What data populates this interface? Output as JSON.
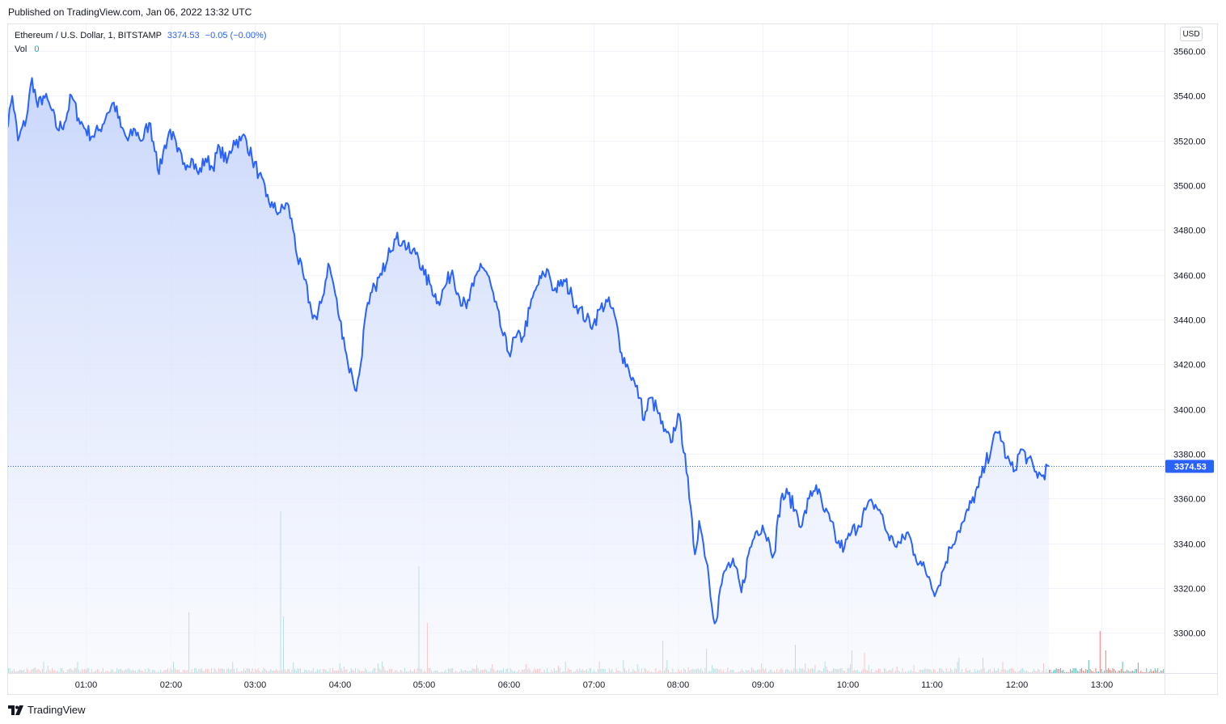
{
  "header": {
    "published": "Published on TradingView.com, Jan 06, 2022 13:32 UTC"
  },
  "legend": {
    "symbol": "Ethereum / U.S. Dollar, 1, BITSTAMP",
    "price": "3374.53",
    "change": "−0.05 (−0.00%)",
    "volume_label": "Vol",
    "volume_value": "0"
  },
  "currency_button": "USD",
  "footer": {
    "brand": "TradingView",
    "logo_icon": "tradingview-logo-icon"
  },
  "colors": {
    "line": "#2962ff",
    "area_top": "#c7d5fb",
    "area_bottom": "#f5f7fe",
    "volume_up": "#26a69a",
    "volume_down": "#ef5350",
    "last_price_tag": "#2962ff",
    "grid": "#f0f3fa"
  },
  "chart_data": {
    "type": "area",
    "title": "Ethereum / U.S. Dollar, 1, BITSTAMP",
    "xlabel": "",
    "ylabel": "",
    "grid": true,
    "x_ticks": [
      "01:00",
      "02:00",
      "03:00",
      "04:00",
      "05:00",
      "06:00",
      "07:00",
      "08:00",
      "09:00",
      "10:00",
      "11:00",
      "12:00",
      "13:00"
    ],
    "y_ticks": [
      3300,
      3320,
      3340,
      3360,
      3380,
      3400,
      3420,
      3440,
      3460,
      3480,
      3500,
      3520,
      3540,
      3560
    ],
    "ylim": [
      3282,
      3572
    ],
    "xlim": [
      "00:05",
      "13:45"
    ],
    "last_price": 3374.53,
    "series": [
      {
        "points": [
          [
            "00:00",
            3535
          ],
          [
            "00:04",
            3525
          ],
          [
            "00:08",
            3540
          ],
          [
            "00:12",
            3520
          ],
          [
            "00:18",
            3530
          ],
          [
            "00:22",
            3548
          ],
          [
            "00:26",
            3535
          ],
          [
            "00:30",
            3540
          ],
          [
            "00:35",
            3535
          ],
          [
            "00:40",
            3525
          ],
          [
            "00:45",
            3528
          ],
          [
            "00:50",
            3540
          ],
          [
            "00:55",
            3530
          ],
          [
            "01:00",
            3525
          ],
          [
            "01:05",
            3522
          ],
          [
            "01:10",
            3525
          ],
          [
            "01:15",
            3532
          ],
          [
            "01:20",
            3537
          ],
          [
            "01:25",
            3526
          ],
          [
            "01:30",
            3520
          ],
          [
            "01:35",
            3525
          ],
          [
            "01:40",
            3520
          ],
          [
            "01:45",
            3528
          ],
          [
            "01:50",
            3515
          ],
          [
            "01:52",
            3505
          ],
          [
            "01:55",
            3515
          ],
          [
            "02:00",
            3525
          ],
          [
            "02:05",
            3515
          ],
          [
            "02:10",
            3510
          ],
          [
            "02:15",
            3512
          ],
          [
            "02:20",
            3505
          ],
          [
            "02:25",
            3512
          ],
          [
            "02:30",
            3508
          ],
          [
            "02:35",
            3517
          ],
          [
            "02:40",
            3510
          ],
          [
            "02:45",
            3520
          ],
          [
            "02:50",
            3520
          ],
          [
            "02:53",
            3522
          ],
          [
            "02:58",
            3512
          ],
          [
            "03:03",
            3505
          ],
          [
            "03:08",
            3495
          ],
          [
            "03:13",
            3490
          ],
          [
            "03:18",
            3488
          ],
          [
            "03:23",
            3492
          ],
          [
            "03:28",
            3478
          ],
          [
            "03:30",
            3468
          ],
          [
            "03:35",
            3458
          ],
          [
            "03:40",
            3444
          ],
          [
            "03:44",
            3440
          ],
          [
            "03:48",
            3450
          ],
          [
            "03:52",
            3465
          ],
          [
            "03:56",
            3455
          ],
          [
            "04:00",
            3440
          ],
          [
            "04:03",
            3432
          ],
          [
            "04:06",
            3420
          ],
          [
            "04:09",
            3415
          ],
          [
            "04:12",
            3408
          ],
          [
            "04:15",
            3420
          ],
          [
            "04:18",
            3440
          ],
          [
            "04:21",
            3447
          ],
          [
            "04:25",
            3455
          ],
          [
            "04:30",
            3460
          ],
          [
            "04:35",
            3472
          ],
          [
            "04:40",
            3476
          ],
          [
            "04:45",
            3475
          ],
          [
            "04:50",
            3470
          ],
          [
            "04:55",
            3470
          ],
          [
            "05:00",
            3460
          ],
          [
            "05:05",
            3455
          ],
          [
            "05:10",
            3448
          ],
          [
            "05:15",
            3455
          ],
          [
            "05:20",
            3462
          ],
          [
            "05:25",
            3450
          ],
          [
            "05:30",
            3445
          ],
          [
            "05:35",
            3455
          ],
          [
            "05:40",
            3465
          ],
          [
            "05:45",
            3460
          ],
          [
            "05:50",
            3448
          ],
          [
            "05:55",
            3435
          ],
          [
            "06:00",
            3425
          ],
          [
            "06:05",
            3432
          ],
          [
            "06:10",
            3432
          ],
          [
            "06:15",
            3445
          ],
          [
            "06:20",
            3455
          ],
          [
            "06:25",
            3460
          ],
          [
            "06:28",
            3462
          ],
          [
            "06:32",
            3453
          ],
          [
            "06:36",
            3455
          ],
          [
            "06:40",
            3457
          ],
          [
            "06:45",
            3450
          ],
          [
            "06:50",
            3445
          ],
          [
            "06:55",
            3440
          ],
          [
            "07:00",
            3438
          ],
          [
            "07:05",
            3445
          ],
          [
            "07:10",
            3448
          ],
          [
            "07:15",
            3442
          ],
          [
            "07:20",
            3425
          ],
          [
            "07:25",
            3418
          ],
          [
            "07:30",
            3410
          ],
          [
            "07:33",
            3405
          ],
          [
            "07:36",
            3395
          ],
          [
            "07:40",
            3405
          ],
          [
            "07:45",
            3400
          ],
          [
            "07:50",
            3390
          ],
          [
            "07:55",
            3385
          ],
          [
            "08:00",
            3398
          ],
          [
            "08:05",
            3380
          ],
          [
            "08:08",
            3360
          ],
          [
            "08:12",
            3335
          ],
          [
            "08:15",
            3350
          ],
          [
            "08:18",
            3340
          ],
          [
            "08:21",
            3330
          ],
          [
            "08:24",
            3312
          ],
          [
            "08:27",
            3305
          ],
          [
            "08:30",
            3320
          ],
          [
            "08:35",
            3330
          ],
          [
            "08:40",
            3330
          ],
          [
            "08:45",
            3318
          ],
          [
            "08:50",
            3335
          ],
          [
            "08:55",
            3345
          ],
          [
            "09:00",
            3348
          ],
          [
            "09:05",
            3340
          ],
          [
            "09:08",
            3335
          ],
          [
            "09:13",
            3360
          ],
          [
            "09:18",
            3362
          ],
          [
            "09:23",
            3355
          ],
          [
            "09:28",
            3348
          ],
          [
            "09:33",
            3360
          ],
          [
            "09:38",
            3366
          ],
          [
            "09:43",
            3355
          ],
          [
            "09:48",
            3350
          ],
          [
            "09:53",
            3340
          ],
          [
            "09:58",
            3338
          ],
          [
            "10:03",
            3345
          ],
          [
            "10:08",
            3348
          ],
          [
            "10:13",
            3355
          ],
          [
            "10:18",
            3358
          ],
          [
            "10:23",
            3355
          ],
          [
            "10:28",
            3345
          ],
          [
            "10:33",
            3340
          ],
          [
            "10:38",
            3340
          ],
          [
            "10:43",
            3345
          ],
          [
            "10:48",
            3335
          ],
          [
            "10:53",
            3330
          ],
          [
            "10:58",
            3325
          ],
          [
            "11:03",
            3318
          ],
          [
            "11:08",
            3328
          ],
          [
            "11:13",
            3338
          ],
          [
            "11:18",
            3345
          ],
          [
            "11:23",
            3350
          ],
          [
            "11:28",
            3358
          ],
          [
            "11:33",
            3365
          ],
          [
            "11:38",
            3375
          ],
          [
            "11:43",
            3385
          ],
          [
            "11:48",
            3390
          ],
          [
            "11:53",
            3378
          ],
          [
            "11:58",
            3372
          ],
          [
            "12:03",
            3382
          ],
          [
            "12:08",
            3378
          ],
          [
            "12:13",
            3372
          ],
          [
            "12:18",
            3370
          ],
          [
            "12:23",
            3374.53
          ]
        ]
      }
    ],
    "volume": {
      "label": "Vol",
      "values_note": "per-bar volume shown as thin up/down colored bars at chart bottom"
    }
  }
}
